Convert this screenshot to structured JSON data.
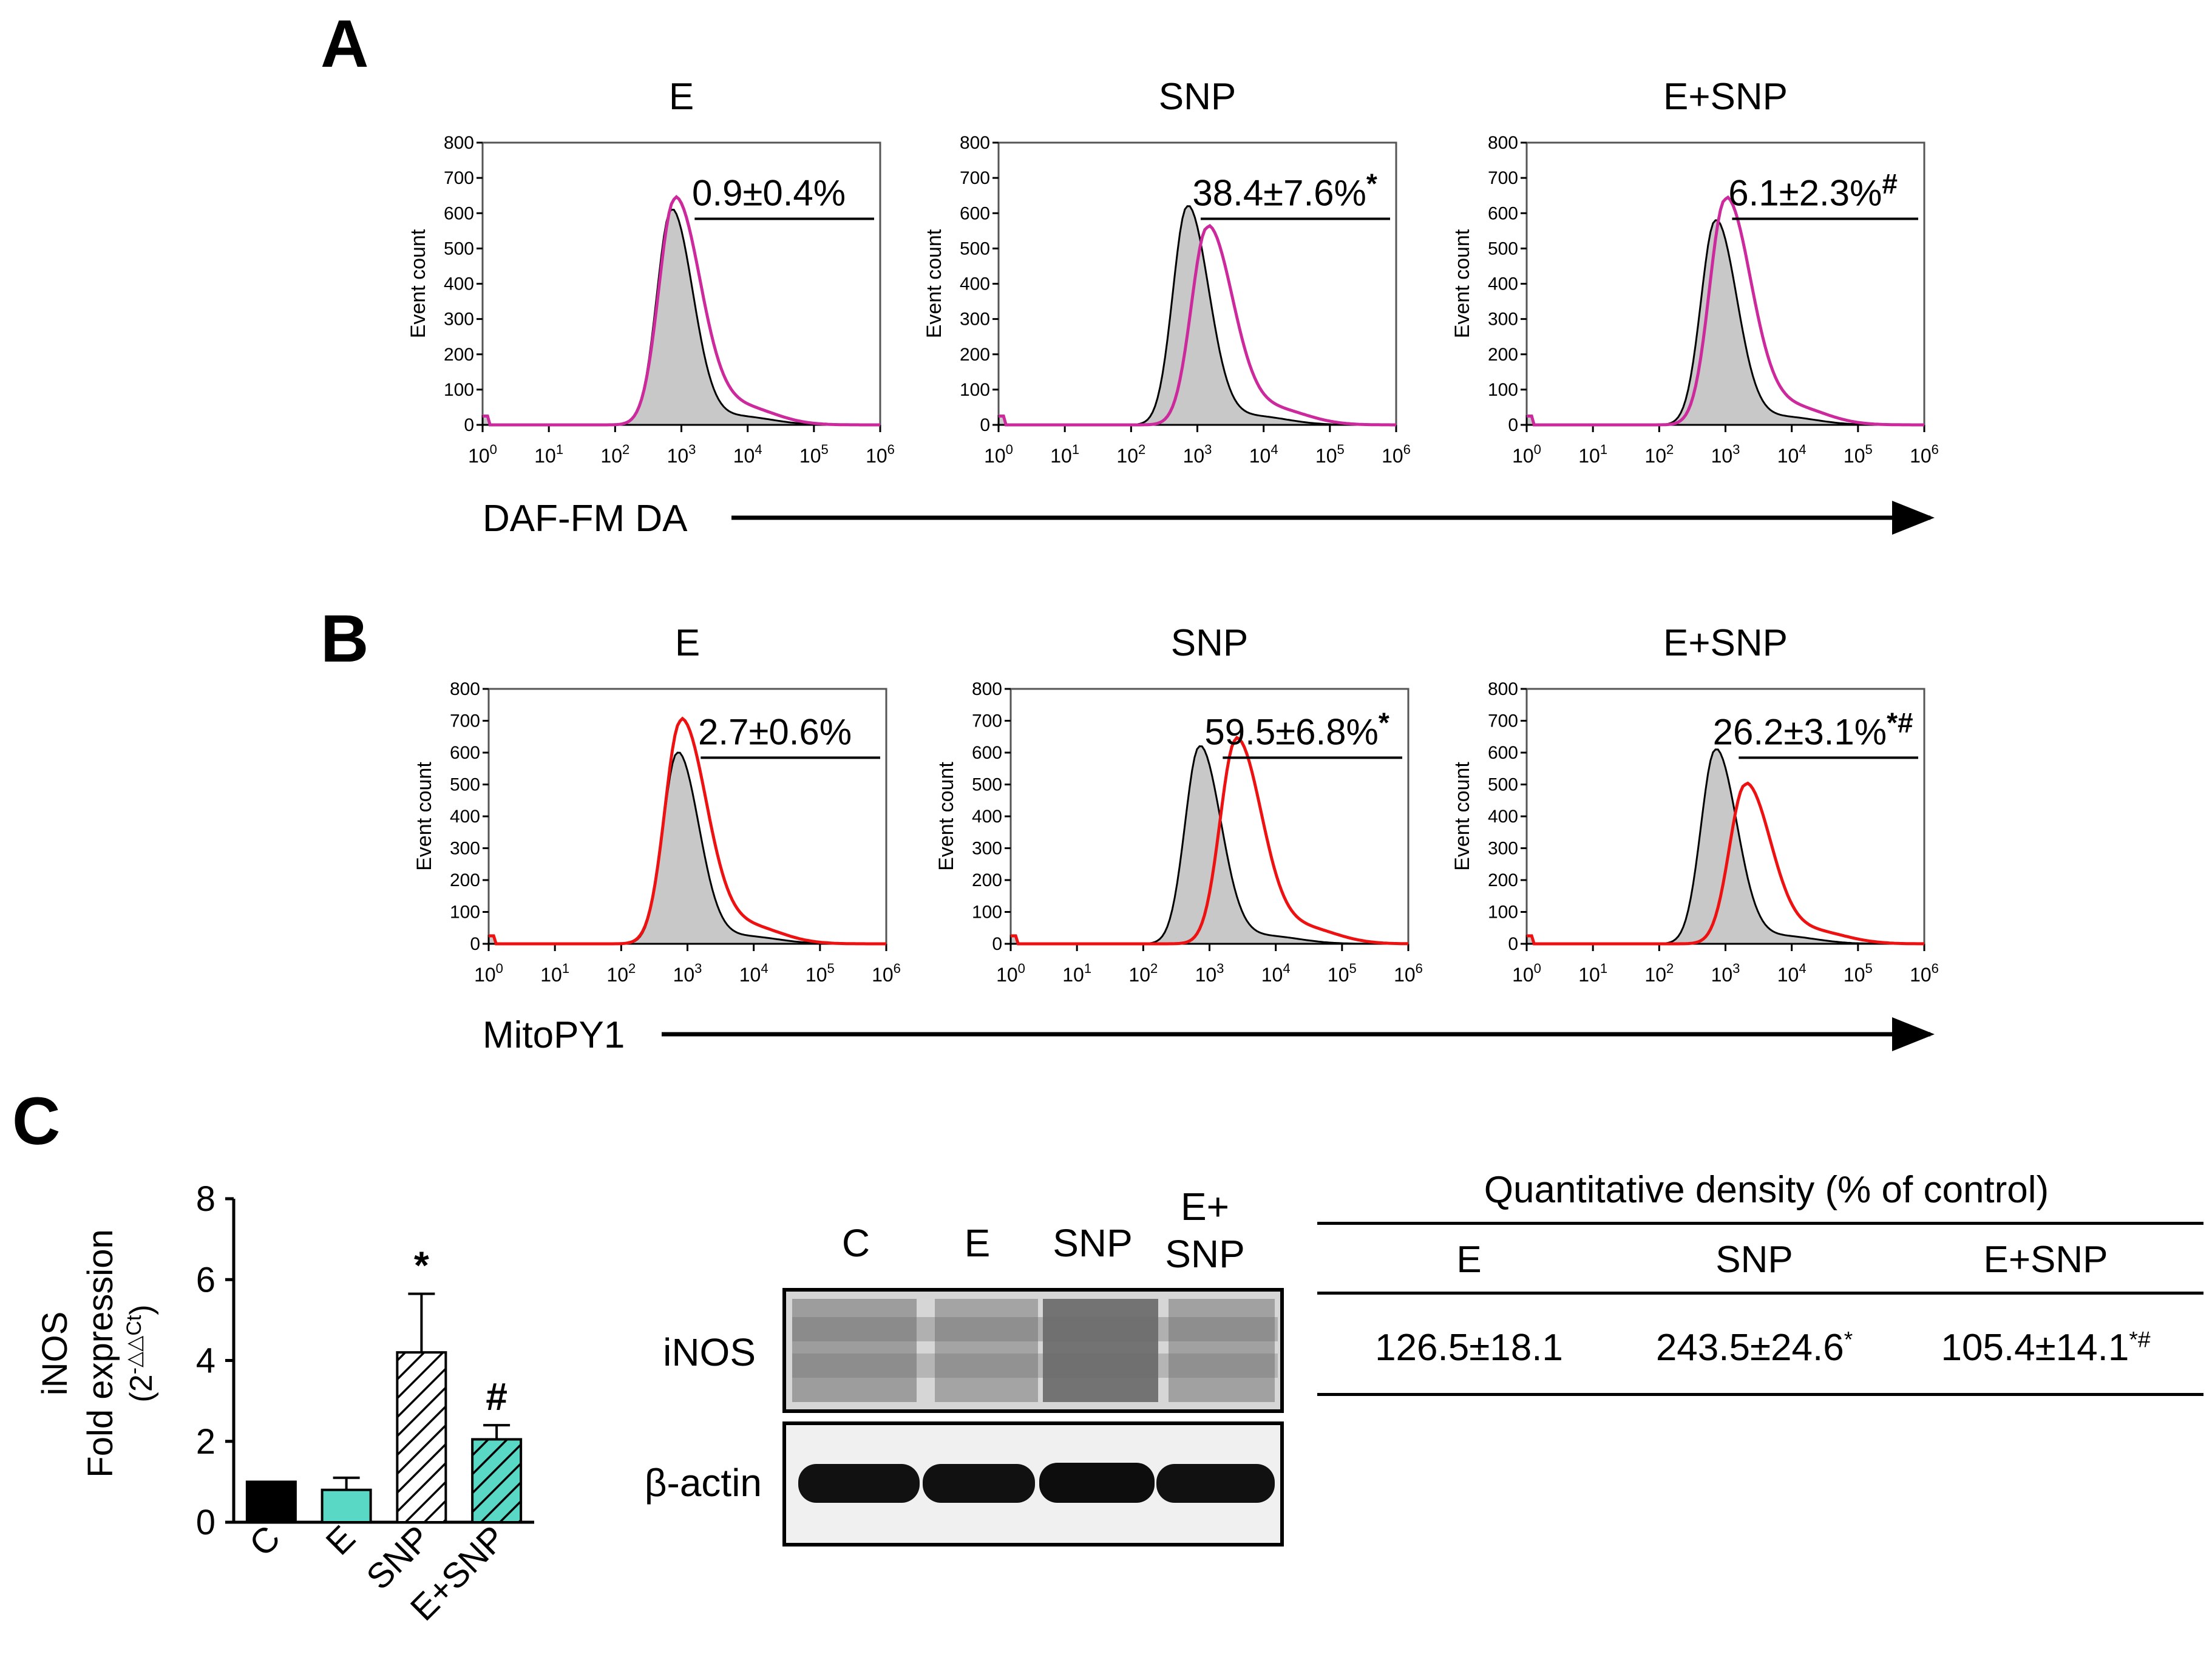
{
  "panels": {
    "A": {
      "letter": "A",
      "x_axis_label": "DAF-FM DA",
      "treated_color": "#cc2a9c",
      "plots": [
        {
          "title": "E",
          "stat": "0.9±0.4%",
          "mark": "",
          "control_peak": 610,
          "treated_peak": 640,
          "treated_center": 2.9,
          "gate_start": 3.2
        },
        {
          "title": "SNP",
          "stat": "38.4±7.6%",
          "mark": "*",
          "control_peak": 620,
          "treated_peak": 560,
          "treated_center": 3.15,
          "gate_start": 3.05
        },
        {
          "title": "E+SNP",
          "stat": "6.1±2.3%",
          "mark": "#",
          "control_peak": 580,
          "treated_peak": 640,
          "treated_center": 3.0,
          "gate_start": 3.1
        }
      ]
    },
    "B": {
      "letter": "B",
      "x_axis_label": "MitoPY1",
      "treated_color": "#ee1111",
      "plots": [
        {
          "title": "E",
          "stat": "2.7±0.6%",
          "mark": "",
          "control_peak": 600,
          "treated_peak": 700,
          "treated_center": 2.9,
          "gate_start": 3.2
        },
        {
          "title": "SNP",
          "stat": "59.5±6.8%",
          "mark": "*",
          "control_peak": 620,
          "treated_peak": 640,
          "treated_center": 3.4,
          "gate_start": 3.2
        },
        {
          "title": "E+SNP",
          "stat": "26.2±3.1%",
          "mark": "*#",
          "control_peak": 610,
          "treated_peak": 500,
          "treated_center": 3.3,
          "gate_start": 3.2
        }
      ]
    }
  },
  "histogram_axes": {
    "ylabel": "Event count",
    "yticks": [
      "0",
      "100",
      "200",
      "300",
      "400",
      "500",
      "600",
      "700",
      "800"
    ],
    "ymax": 800,
    "xticks": [
      "10",
      "10",
      "10",
      "10",
      "10",
      "10",
      "10"
    ],
    "xtick_exponents": [
      "0",
      "1",
      "2",
      "3",
      "4",
      "5",
      "6"
    ]
  },
  "panel_C": {
    "letter": "C",
    "bar_chart": {
      "ylabel_line1": "iNOS",
      "ylabel_line2": "Fold expression",
      "ylabel_line3": "(2",
      "ylabel_exponent": "-△△Ct",
      "ylabel_close": ")",
      "yticks": [
        "0",
        "2",
        "4",
        "6",
        "8"
      ]
    },
    "blot": {
      "lanes": [
        "C",
        "E",
        "SNP",
        "E+\nSNP"
      ],
      "lane_e_plus_line1": "E+",
      "lane_e_plus_line2": "SNP",
      "row_labels": [
        "iNOS",
        "β-actin"
      ]
    },
    "density_table": {
      "title": "Quantitative density (% of control)",
      "headers": [
        "E",
        "SNP",
        "E+SNP"
      ],
      "values": [
        "126.5±18.1",
        "243.5±24.6",
        "105.4±14.1"
      ],
      "marks": [
        "",
        "*",
        "*#"
      ]
    }
  },
  "chart_data": [
    {
      "type": "bar",
      "title": "",
      "xlabel": "",
      "ylabel": "iNOS Fold expression (2-△△Ct)",
      "ylim": [
        0,
        8
      ],
      "categories": [
        "C",
        "E",
        "SNP",
        "E+SNP"
      ],
      "values": [
        1.0,
        0.8,
        4.2,
        2.05
      ],
      "errors": [
        0,
        0.3,
        1.45,
        0.35
      ],
      "annotations": [
        "",
        "",
        "*",
        "#"
      ],
      "colors": [
        "#000000",
        "#5ad8c6",
        "hatch-white",
        "hatch-teal"
      ]
    }
  ]
}
